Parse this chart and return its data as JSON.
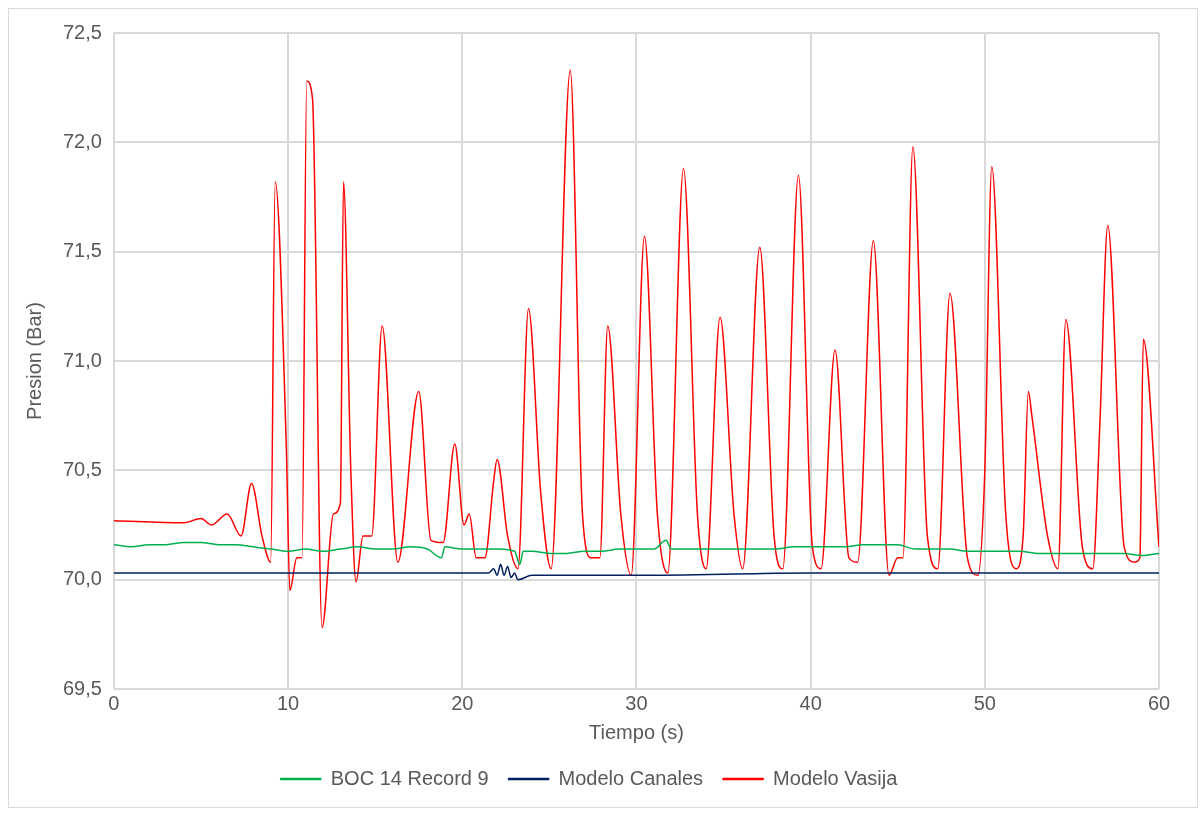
{
  "chart_data": {
    "type": "line",
    "xlabel": "Tiempo (s)",
    "ylabel": "Presion (Bar)",
    "xlim": [
      0,
      60
    ],
    "xticks": [
      0,
      10,
      20,
      30,
      40,
      50,
      60
    ],
    "ylim": [
      69.5,
      72.5
    ],
    "yticks": [
      {
        "value": 69.5,
        "label": "69,5"
      },
      {
        "value": 70,
        "label": "70,0"
      },
      {
        "value": 70.5,
        "label": "70,5"
      },
      {
        "value": 71,
        "label": "71,0"
      },
      {
        "value": 71.5,
        "label": "71,5"
      },
      {
        "value": 72,
        "label": "72,0"
      },
      {
        "value": 72.5,
        "label": "72,5"
      }
    ],
    "grid": true,
    "legend": "bottom",
    "marker": "none",
    "line_style": "solid",
    "series": [
      {
        "name": "BOC 14 Record 9",
        "color": "#00b050",
        "x": [
          0,
          1,
          2,
          3,
          4,
          5,
          6,
          7,
          8,
          9,
          10,
          11,
          12,
          13,
          14,
          15,
          16,
          17,
          18,
          18.8,
          19,
          20,
          21,
          22,
          23,
          23.3,
          23.5,
          24,
          25,
          26,
          27,
          28,
          29,
          30,
          31,
          31.7,
          32,
          33,
          34,
          35,
          36,
          37,
          38,
          39,
          40,
          41,
          42,
          43,
          44,
          45,
          46,
          47,
          48,
          49,
          50,
          51,
          52,
          53,
          54,
          55,
          56,
          57,
          58,
          59,
          60
        ],
        "values": [
          70.16,
          70.15,
          70.16,
          70.16,
          70.17,
          70.17,
          70.16,
          70.16,
          70.15,
          70.14,
          70.13,
          70.14,
          70.13,
          70.14,
          70.15,
          70.14,
          70.14,
          70.15,
          70.14,
          70.1,
          70.15,
          70.14,
          70.14,
          70.14,
          70.13,
          70.07,
          70.13,
          70.13,
          70.12,
          70.12,
          70.13,
          70.13,
          70.14,
          70.14,
          70.14,
          70.18,
          70.14,
          70.14,
          70.14,
          70.14,
          70.14,
          70.14,
          70.14,
          70.15,
          70.15,
          70.15,
          70.15,
          70.16,
          70.16,
          70.16,
          70.14,
          70.14,
          70.14,
          70.13,
          70.13,
          70.13,
          70.13,
          70.12,
          70.12,
          70.12,
          70.12,
          70.12,
          70.12,
          70.11,
          70.12
        ]
      },
      {
        "name": "Modelo Canales",
        "color": "#002060",
        "x": [
          0,
          10,
          20,
          21.5,
          21.8,
          22,
          22.2,
          22.4,
          22.6,
          22.8,
          23,
          23.2,
          24,
          30,
          40,
          50,
          60
        ],
        "values": [
          70.03,
          70.03,
          70.03,
          70.03,
          70.05,
          70.02,
          70.07,
          70.02,
          70.06,
          70.01,
          70.03,
          70.0,
          70.02,
          70.02,
          70.03,
          70.03,
          70.03
        ]
      },
      {
        "name": "Modelo Vasija",
        "color": "#ff0000",
        "x": [
          0,
          4,
          5,
          5.6,
          6.5,
          7.3,
          7.9,
          8.5,
          9,
          9.26,
          9.9,
          10.1,
          10.5,
          10.8,
          11.07,
          11.4,
          11.95,
          12.6,
          13,
          13.18,
          13.6,
          13.9,
          14.3,
          14.8,
          15.4,
          16.3,
          17.5,
          18.2,
          18.9,
          19.57,
          20.1,
          20.4,
          20.8,
          21.3,
          21.8,
          22,
          22.6,
          23.2,
          23.8,
          24.5,
          25.1,
          26.2,
          26.9,
          27.4,
          27.9,
          28.35,
          29.1,
          29.7,
          30.46,
          31.2,
          31.8,
          32.7,
          33.5,
          34,
          34.8,
          35.6,
          36.1,
          37.08,
          37.9,
          38.4,
          39.3,
          40.1,
          40.6,
          41.4,
          42.2,
          42.7,
          43.6,
          44.5,
          45,
          45.3,
          45.87,
          46.7,
          47.3,
          48,
          49,
          49.6,
          50,
          50.4,
          51.2,
          51.8,
          52.2,
          52.5,
          52.7,
          53.6,
          54.2,
          54.65,
          55.6,
          56.2,
          56.6,
          57.06,
          58,
          58.6,
          58.9,
          59.1,
          60
        ],
        "values": [
          70.27,
          70.26,
          70.28,
          70.25,
          70.3,
          70.2,
          70.44,
          70.2,
          70.08,
          71.82,
          70.6,
          69.95,
          70.1,
          70.1,
          72.28,
          72.2,
          69.78,
          70.3,
          70.35,
          71.82,
          70.5,
          69.99,
          70.2,
          70.2,
          71.16,
          70.08,
          70.86,
          70.18,
          70.17,
          70.62,
          70.25,
          70.3,
          70.1,
          70.1,
          70.45,
          70.55,
          70.2,
          70.05,
          71.24,
          70.4,
          70.05,
          72.33,
          70.3,
          70.1,
          70.1,
          71.16,
          70.3,
          70.02,
          71.57,
          70.3,
          70.03,
          71.88,
          70.3,
          70.05,
          71.2,
          70.3,
          70.05,
          71.52,
          70.2,
          70.05,
          71.85,
          70.15,
          70.05,
          71.05,
          70.1,
          70.08,
          71.55,
          70.02,
          70.1,
          70.1,
          71.98,
          70.2,
          70.05,
          71.31,
          70.1,
          70.02,
          70.5,
          71.89,
          70.3,
          70.05,
          70.2,
          70.86,
          70.75,
          70.2,
          70.05,
          71.19,
          70.15,
          70.05,
          70.7,
          71.62,
          70.15,
          70.08,
          70.1,
          71.1,
          70.15
        ]
      }
    ]
  }
}
